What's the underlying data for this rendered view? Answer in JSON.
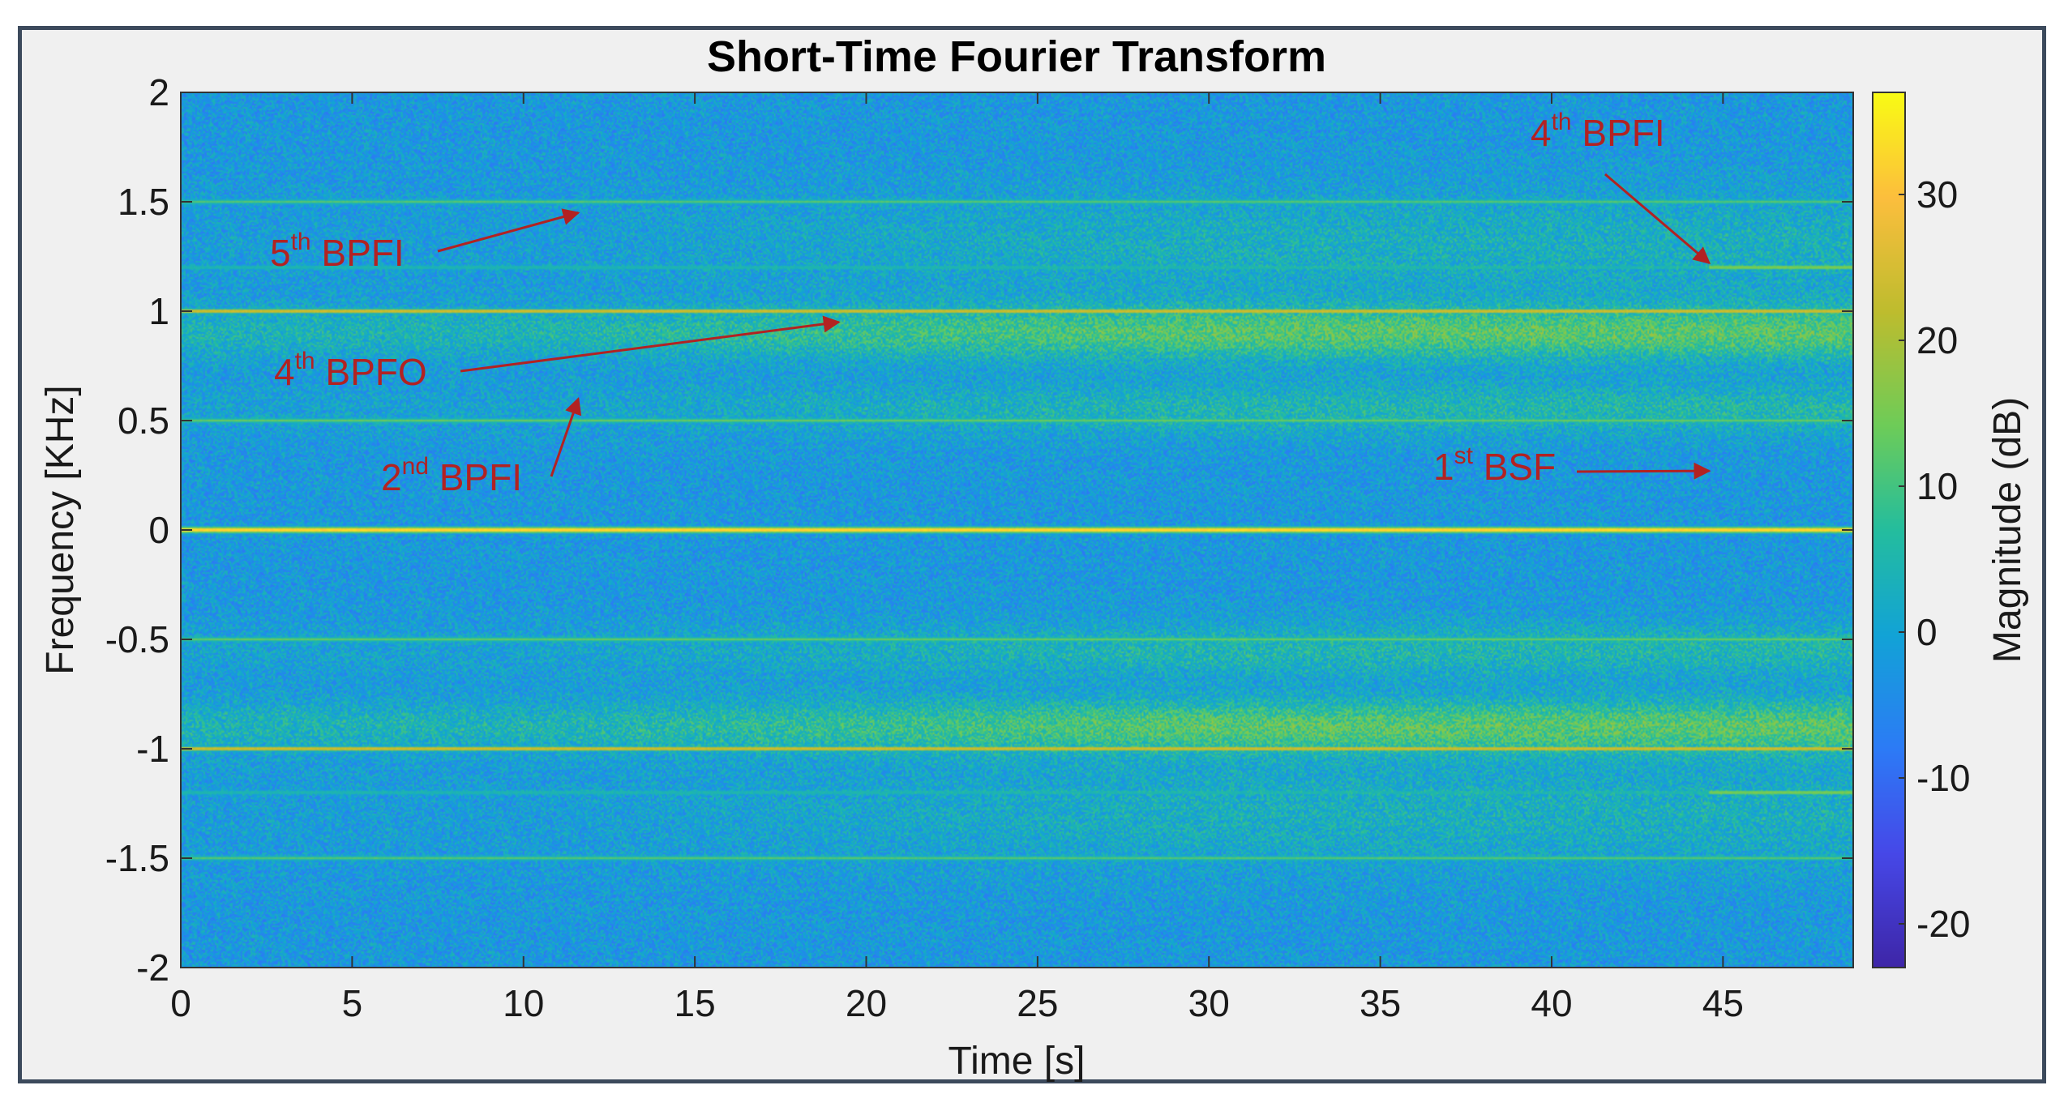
{
  "chart_data": {
    "type": "heatmap",
    "title": "Short-Time Fourier Transform",
    "xlabel": "Time [s]",
    "ylabel": "Frequency [KHz]",
    "xlim": [
      0,
      48.8
    ],
    "ylim": [
      -2,
      2
    ],
    "xticks": [
      "0",
      "5",
      "10",
      "15",
      "20",
      "25",
      "30",
      "35",
      "40",
      "45"
    ],
    "xtick_values": [
      0,
      5,
      10,
      15,
      20,
      25,
      30,
      35,
      40,
      45
    ],
    "yticks": [
      "2",
      "1.5",
      "1",
      "0.5",
      "0",
      "-0.5",
      "-1",
      "-1.5",
      "-2"
    ],
    "ytick_values": [
      2,
      1.5,
      1,
      0.5,
      0,
      -0.5,
      -1,
      -1.5,
      -2
    ],
    "colorbar": {
      "label": "Magnitude (dB)",
      "range": [
        -23,
        37
      ],
      "ticks": [
        "30",
        "20",
        "10",
        "0",
        "-10",
        "-20"
      ],
      "tick_values": [
        30,
        20,
        10,
        0,
        -10,
        -20
      ],
      "colormap": "parula"
    },
    "spectral_lines": [
      {
        "frequency_khz": 0,
        "magnitude_db": 36
      },
      {
        "frequency_khz": 1,
        "magnitude_db": 28
      },
      {
        "frequency_khz": -1,
        "magnitude_db": 28
      },
      {
        "frequency_khz": 0.5,
        "magnitude_db": 14
      },
      {
        "frequency_khz": -0.5,
        "magnitude_db": 14
      },
      {
        "frequency_khz": 1.5,
        "magnitude_db": 12
      },
      {
        "frequency_khz": -1.5,
        "magnitude_db": 12
      },
      {
        "frequency_khz": 1.2,
        "magnitude_db": 18
      },
      {
        "frequency_khz": -1.2,
        "magnitude_db": 18
      }
    ],
    "annotations": [
      {
        "base": "5",
        "sup": "th",
        "rest": " BPFI",
        "arrow_to": {
          "time_s": 11.6,
          "frequency_khz": 1.45
        }
      },
      {
        "base": "4",
        "sup": "th",
        "rest": " BPFO",
        "arrow_to": {
          "time_s": 19.2,
          "frequency_khz": 0.95
        }
      },
      {
        "base": "2",
        "sup": "nd",
        "rest": " BPFI",
        "arrow_to": {
          "time_s": 11.6,
          "frequency_khz": 0.6
        }
      },
      {
        "base": "4",
        "sup": "th",
        "rest": " BPFI",
        "arrow_to": {
          "time_s": 44.6,
          "frequency_khz": 1.22
        }
      },
      {
        "base": "1",
        "sup": "st",
        "rest": " BSF",
        "arrow_to": {
          "time_s": 44.6,
          "frequency_khz": 0.27
        }
      }
    ]
  },
  "colors": {
    "annotation": "#b22222",
    "frame_border": "#3c4a5c",
    "background": "#f0f0f0"
  }
}
